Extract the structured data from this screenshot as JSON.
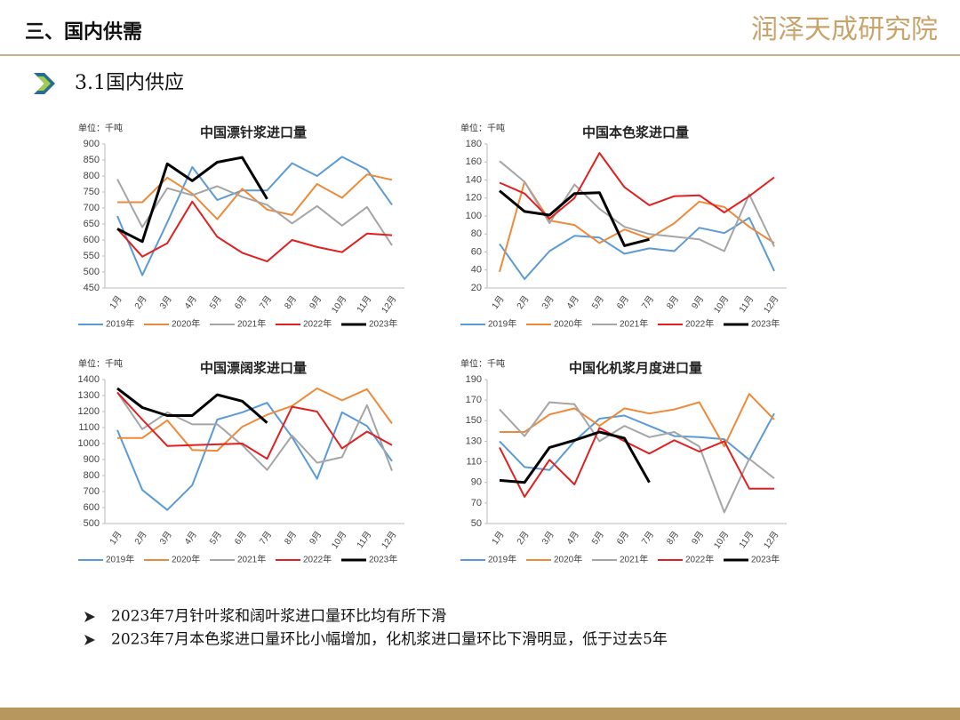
{
  "page": {
    "section": "三、国内供需",
    "logo": "润泽天成研究院",
    "subtitle": "3.1国内供应",
    "bullets": [
      "2023年7月针叶浆和阔叶浆进口量环比均有所下滑",
      "2023年7月本色浆进口量环比小幅增加，化机浆进口量环比下滑明显，低于过去5年"
    ]
  },
  "chart_data": [
    {
      "type": "line",
      "title": "中国漂针浆进口量",
      "y_label": "单位：千吨",
      "categories": [
        "1月",
        "2月",
        "3月",
        "4月",
        "5月",
        "6月",
        "7月",
        "8月",
        "9月",
        "10月",
        "11月",
        "12月"
      ],
      "ylim": [
        450,
        900
      ],
      "yticks": [
        450,
        500,
        550,
        600,
        650,
        700,
        750,
        800,
        850,
        900
      ],
      "legend": "bottom",
      "series": [
        {
          "name": "2019年",
          "color": "#5b9bd5",
          "values": [
            675,
            490,
            655,
            828,
            725,
            755,
            755,
            840,
            800,
            860,
            820,
            710
          ]
        },
        {
          "name": "2020年",
          "color": "#ed8a3a",
          "values": [
            718,
            718,
            795,
            745,
            665,
            760,
            695,
            678,
            775,
            732,
            805,
            788
          ]
        },
        {
          "name": "2021年",
          "color": "#a5a5a5",
          "values": [
            790,
            640,
            762,
            740,
            768,
            735,
            710,
            652,
            706,
            645,
            703,
            583
          ]
        },
        {
          "name": "2022年",
          "color": "#e02020",
          "values": [
            635,
            548,
            590,
            720,
            610,
            560,
            533,
            600,
            578,
            562,
            620,
            615
          ]
        },
        {
          "name": "2023年",
          "color": "#000000",
          "values": [
            635,
            595,
            838,
            785,
            843,
            858,
            728,
            null,
            null,
            null,
            null,
            null
          ]
        }
      ]
    },
    {
      "type": "line",
      "title": "中国本色浆进口量",
      "y_label": "单位：千吨",
      "categories": [
        "1月",
        "2月",
        "3月",
        "4月",
        "5月",
        "6月",
        "7月",
        "8月",
        "9月",
        "10月",
        "11月",
        "12月"
      ],
      "ylim": [
        20,
        180
      ],
      "yticks": [
        20,
        40,
        60,
        80,
        100,
        120,
        140,
        160,
        180
      ],
      "legend": "bottom",
      "series": [
        {
          "name": "2019年",
          "color": "#5b9bd5",
          "values": [
            69,
            30,
            61,
            78,
            76,
            58,
            64,
            61,
            87,
            81,
            98,
            39
          ]
        },
        {
          "name": "2020年",
          "color": "#ed8a3a",
          "values": [
            38,
            138,
            95,
            90,
            70,
            85,
            75,
            92,
            116,
            110,
            88,
            70
          ]
        },
        {
          "name": "2021年",
          "color": "#a5a5a5",
          "values": [
            161,
            138,
            92,
            135,
            108,
            88,
            80,
            77,
            74,
            61,
            124,
            66
          ]
        },
        {
          "name": "2022年",
          "color": "#e02020",
          "values": [
            137,
            125,
            97,
            120,
            170,
            132,
            112,
            122,
            123,
            104,
            122,
            143
          ]
        },
        {
          "name": "2023年",
          "color": "#000000",
          "values": [
            128,
            105,
            101,
            125,
            126,
            67,
            74,
            null,
            null,
            null,
            null,
            null
          ]
        }
      ]
    },
    {
      "type": "line",
      "title": "中国漂阔浆进口量",
      "y_label": "单位：千吨",
      "categories": [
        "1月",
        "2月",
        "3月",
        "4月",
        "5月",
        "6月",
        "7月",
        "8月",
        "9月",
        "10月",
        "11月",
        "12月"
      ],
      "ylim": [
        500,
        1400
      ],
      "yticks": [
        500,
        600,
        700,
        800,
        900,
        1000,
        1100,
        1200,
        1300,
        1400
      ],
      "legend": "bottom",
      "series": [
        {
          "name": "2019年",
          "color": "#5b9bd5",
          "values": [
            1085,
            710,
            585,
            740,
            1150,
            1195,
            1255,
            1040,
            780,
            1195,
            1110,
            890
          ]
        },
        {
          "name": "2020年",
          "color": "#ed8a3a",
          "values": [
            1035,
            1035,
            1145,
            960,
            955,
            1105,
            1180,
            1235,
            1345,
            1270,
            1340,
            1125
          ]
        },
        {
          "name": "2021年",
          "color": "#a5a5a5",
          "values": [
            1320,
            1090,
            1195,
            1120,
            1120,
            990,
            835,
            1050,
            880,
            915,
            1240,
            830
          ]
        },
        {
          "name": "2022年",
          "color": "#e02020",
          "values": [
            1320,
            1150,
            985,
            990,
            995,
            1000,
            905,
            1230,
            1200,
            970,
            1075,
            990
          ]
        },
        {
          "name": "2023年",
          "color": "#000000",
          "values": [
            1345,
            1225,
            1175,
            1175,
            1305,
            1265,
            1130,
            null,
            null,
            null,
            null,
            null
          ]
        }
      ]
    },
    {
      "type": "line",
      "title": "中国化机浆月度进口量",
      "y_label": "单位：千吨",
      "categories": [
        "1月",
        "2月",
        "3月",
        "4月",
        "5月",
        "6月",
        "7月",
        "8月",
        "9月",
        "10月",
        "11月",
        "12月"
      ],
      "ylim": [
        50,
        190
      ],
      "yticks": [
        50,
        70,
        90,
        110,
        130,
        150,
        170,
        190
      ],
      "legend": "bottom",
      "series": [
        {
          "name": "2019年",
          "color": "#5b9bd5",
          "values": [
            130,
            105,
            102,
            130,
            152,
            155,
            145,
            135,
            134,
            132,
            112,
            157
          ]
        },
        {
          "name": "2020年",
          "color": "#ed8a3a",
          "values": [
            139,
            139,
            156,
            162,
            145,
            162,
            157,
            161,
            168,
            125,
            176,
            151
          ]
        },
        {
          "name": "2021年",
          "color": "#a5a5a5",
          "values": [
            161,
            135,
            168,
            166,
            130,
            145,
            134,
            139,
            125,
            61,
            113,
            94
          ]
        },
        {
          "name": "2022年",
          "color": "#e02020",
          "values": [
            124,
            76,
            112,
            88,
            143,
            130,
            118,
            131,
            120,
            130,
            84,
            84
          ]
        },
        {
          "name": "2023年",
          "color": "#000000",
          "values": [
            92,
            90,
            124,
            131,
            139,
            133,
            90,
            null,
            null,
            null,
            null,
            null
          ]
        }
      ]
    }
  ]
}
